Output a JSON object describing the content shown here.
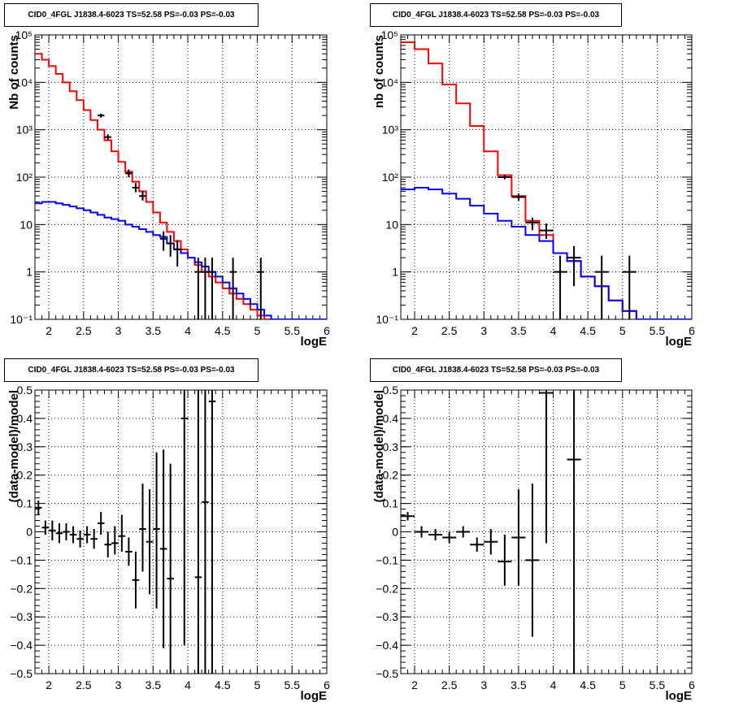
{
  "panels": [
    {
      "id": "p1",
      "title": "CID0_4FGL J1838.4-6023 TS=52.58 PS=-0.03 PS=-0.03",
      "ylabel": "Nb of counts",
      "xlabel": "logE"
    },
    {
      "id": "p2",
      "title": "CID0_4FGL J1838.4-6023 TS=52.58 PS=-0.03 PS=-0.03",
      "ylabel": "nb of counts",
      "xlabel": "logE"
    },
    {
      "id": "p3",
      "title": "CID0_4FGL J1838.4-6023 TS=52.58 PS=-0.03 PS=-0.03",
      "ylabel": "(data-model)/model",
      "xlabel": "logE"
    },
    {
      "id": "p4",
      "title": "CID0_4FGL J1838.4-6023 TS=52.58 PS=-0.03 PS=-0.03",
      "ylabel": "(data-model)/model",
      "xlabel": "logE"
    }
  ],
  "x_tick_labels": [
    "2",
    "2.5",
    "3",
    "3.5",
    "4",
    "4.5",
    "5",
    "5.5",
    "6"
  ],
  "y_tick_labels_log": [
    "10⁻¹",
    "1",
    "10",
    "10²",
    "10³",
    "10⁴",
    "10⁵"
  ],
  "y_tick_labels_resid": [
    "−0.5",
    "−0.4",
    "−0.3",
    "−0.2",
    "−0.1",
    "0",
    "0.1",
    "0.2",
    "0.3",
    "0.4",
    "0.5"
  ],
  "colors": {
    "total_model": "#ff0000",
    "source_model": "#0000ff",
    "data": "#000000",
    "grid": "#000000"
  },
  "chart_data": [
    {
      "type": "line",
      "title": "CID0_4FGL J1838.4-6023 TS=52.58 PS=-0.03 PS=-0.03",
      "xlabel": "logE",
      "ylabel": "Nb of counts",
      "xlim": [
        1.8,
        6.0
      ],
      "ylim": [
        0.1,
        100000
      ],
      "log_y": true,
      "grid": true,
      "bin_edges": [
        1.8,
        1.9,
        2.0,
        2.1,
        2.2,
        2.3,
        2.4,
        2.5,
        2.6,
        2.7,
        2.8,
        2.9,
        3.0,
        3.1,
        3.2,
        3.3,
        3.4,
        3.5,
        3.6,
        3.7,
        3.8,
        3.9,
        4.0,
        4.1,
        4.2,
        4.3,
        4.4,
        4.5,
        4.6,
        4.7,
        4.8,
        4.9,
        5.0,
        5.1,
        5.2,
        5.3,
        5.4,
        5.5,
        5.6,
        5.7,
        5.8,
        5.9,
        6.0
      ],
      "series": [
        {
          "values": [
            40000,
            30000,
            22000,
            15000,
            10000,
            6500,
            4200,
            2600,
            1600,
            1000,
            600,
            350,
            210,
            130,
            80,
            50,
            30,
            18,
            11,
            7,
            4.5,
            3,
            2,
            1.4,
            1,
            0.8,
            0.6,
            0.45,
            0.35,
            0.27,
            0.21,
            0.16,
            0.12,
            0.1,
            0.1,
            0.1,
            0.1,
            0.1,
            0.1,
            0.1,
            0.1,
            0.1
          ]
        },
        {
          "values": [
            28,
            30,
            30,
            28,
            26,
            24,
            22,
            20,
            18,
            16,
            14,
            13,
            12,
            10,
            9,
            8,
            7,
            6,
            5.5,
            4,
            3,
            2.5,
            2,
            1.6,
            1.3,
            1,
            0.8,
            0.6,
            0.45,
            0.35,
            0.27,
            0.21,
            0.16,
            0.12,
            0.1,
            0.1,
            0.1,
            0.1,
            0.1,
            0.1,
            0.1,
            0.1
          ]
        }
      ],
      "points": [
        {
          "x": 2.75,
          "y": 2000,
          "ylo": 1800,
          "yhi": 2200,
          "xw": 0.05
        },
        {
          "x": 2.85,
          "y": 700,
          "ylo": 600,
          "yhi": 800,
          "xw": 0.05
        },
        {
          "x": 3.15,
          "y": 120,
          "ylo": 100,
          "yhi": 145,
          "xw": 0.05
        },
        {
          "x": 3.25,
          "y": 60,
          "ylo": 48,
          "yhi": 75,
          "xw": 0.05
        },
        {
          "x": 3.35,
          "y": 40,
          "ylo": 32,
          "yhi": 50,
          "xw": 0.05
        },
        {
          "x": 3.65,
          "y": 5,
          "ylo": 2.8,
          "yhi": 7.2,
          "xw": 0.05
        },
        {
          "x": 3.75,
          "y": 4,
          "ylo": 2.1,
          "yhi": 6,
          "xw": 0.05
        },
        {
          "x": 3.85,
          "y": 3,
          "ylo": 1.3,
          "yhi": 4.7,
          "xw": 0.05
        },
        {
          "x": 4.15,
          "y": 1,
          "ylo": 0.1,
          "yhi": 2,
          "xw": 0.05
        },
        {
          "x": 4.25,
          "y": 1,
          "ylo": 0.1,
          "yhi": 2,
          "xw": 0.05
        },
        {
          "x": 4.35,
          "y": 1,
          "ylo": 0.1,
          "yhi": 2,
          "xw": 0.05
        },
        {
          "x": 4.65,
          "y": 1,
          "ylo": 0.1,
          "yhi": 2,
          "xw": 0.05
        },
        {
          "x": 5.05,
          "y": 1,
          "ylo": 0.1,
          "yhi": 2,
          "xw": 0.05
        }
      ]
    },
    {
      "type": "line",
      "title": "CID0_4FGL J1838.4-6023 TS=52.58 PS=-0.03 PS=-0.03",
      "xlabel": "logE",
      "ylabel": "nb of counts",
      "xlim": [
        1.8,
        6.0
      ],
      "ylim": [
        0.1,
        100000
      ],
      "log_y": true,
      "grid": true,
      "bin_edges": [
        1.8,
        2.0,
        2.2,
        2.4,
        2.6,
        2.8,
        3.0,
        3.2,
        3.4,
        3.6,
        3.8,
        4.0,
        4.2,
        4.4,
        4.6,
        4.8,
        5.0,
        5.2,
        5.4,
        5.6,
        5.8,
        6.0
      ],
      "series": [
        {
          "values": [
            70000,
            50000,
            25000,
            9000,
            3600,
            1200,
            350,
            110,
            40,
            12,
            6,
            2.5,
            1.7,
            0.8,
            0.5,
            0.25,
            0.15,
            0.1,
            0.1,
            0.1,
            0.1
          ]
        },
        {
          "values": [
            55,
            60,
            55,
            45,
            35,
            25,
            17,
            12,
            9,
            6,
            4.5,
            2.5,
            1.7,
            0.8,
            0.5,
            0.25,
            0.15,
            0.1,
            0.1,
            0.1,
            0.1
          ]
        }
      ],
      "points": [
        {
          "x": 3.3,
          "y": 100,
          "ylo": 90,
          "yhi": 112,
          "xw": 0.1
        },
        {
          "x": 3.5,
          "y": 38,
          "ylo": 32,
          "yhi": 45,
          "xw": 0.1
        },
        {
          "x": 3.7,
          "y": 11,
          "ylo": 7.6,
          "yhi": 14,
          "xw": 0.1
        },
        {
          "x": 3.9,
          "y": 7.5,
          "ylo": 5,
          "yhi": 10.5,
          "xw": 0.1
        },
        {
          "x": 4.1,
          "y": 1,
          "ylo": 0.1,
          "yhi": 2.2,
          "xw": 0.1
        },
        {
          "x": 4.3,
          "y": 2,
          "ylo": 0.5,
          "yhi": 3.5,
          "xw": 0.1
        },
        {
          "x": 4.7,
          "y": 1,
          "ylo": 0.1,
          "yhi": 2.2,
          "xw": 0.1
        },
        {
          "x": 5.1,
          "y": 1,
          "ylo": 0.1,
          "yhi": 2.2,
          "xw": 0.1
        }
      ]
    },
    {
      "type": "scatter",
      "title": "CID0_4FGL J1838.4-6023 TS=52.58 PS=-0.03 PS=-0.03",
      "xlabel": "logE",
      "ylabel": "(data-model)/model",
      "xlim": [
        1.8,
        6.0
      ],
      "ylim": [
        -0.5,
        0.5
      ],
      "log_y": false,
      "grid": true,
      "points": [
        {
          "x": 1.85,
          "y": 0.085,
          "ylo": 0.06,
          "yhi": 0.11,
          "xw": 0.05
        },
        {
          "x": 1.95,
          "y": 0.015,
          "ylo": -0.01,
          "yhi": 0.04,
          "xw": 0.05
        },
        {
          "x": 2.05,
          "y": 0.005,
          "ylo": -0.03,
          "yhi": 0.04,
          "xw": 0.05
        },
        {
          "x": 2.15,
          "y": -0.005,
          "ylo": -0.04,
          "yhi": 0.03,
          "xw": 0.05
        },
        {
          "x": 2.25,
          "y": 0.0,
          "ylo": -0.03,
          "yhi": 0.03,
          "xw": 0.05
        },
        {
          "x": 2.35,
          "y": -0.01,
          "ylo": -0.04,
          "yhi": 0.02,
          "xw": 0.05
        },
        {
          "x": 2.45,
          "y": -0.025,
          "ylo": -0.055,
          "yhi": 0.005,
          "xw": 0.05
        },
        {
          "x": 2.55,
          "y": -0.01,
          "ylo": -0.04,
          "yhi": 0.02,
          "xw": 0.05
        },
        {
          "x": 2.65,
          "y": -0.025,
          "ylo": -0.06,
          "yhi": 0.01,
          "xw": 0.05
        },
        {
          "x": 2.75,
          "y": 0.03,
          "ylo": -0.01,
          "yhi": 0.07,
          "xw": 0.05
        },
        {
          "x": 2.85,
          "y": -0.045,
          "ylo": -0.09,
          "yhi": 0.0,
          "xw": 0.05
        },
        {
          "x": 2.95,
          "y": -0.04,
          "ylo": -0.08,
          "yhi": 0.02,
          "xw": 0.05
        },
        {
          "x": 3.05,
          "y": -0.015,
          "ylo": -0.07,
          "yhi": 0.06,
          "xw": 0.05
        },
        {
          "x": 3.15,
          "y": -0.07,
          "ylo": -0.12,
          "yhi": -0.02,
          "xw": 0.05
        },
        {
          "x": 3.25,
          "y": -0.17,
          "ylo": -0.27,
          "yhi": -0.07,
          "xw": 0.05
        },
        {
          "x": 3.35,
          "y": 0.01,
          "ylo": -0.14,
          "yhi": 0.17,
          "xw": 0.05
        },
        {
          "x": 3.45,
          "y": -0.035,
          "ylo": -0.22,
          "yhi": 0.15,
          "xw": 0.05
        },
        {
          "x": 3.55,
          "y": 0.01,
          "ylo": -0.27,
          "yhi": 0.28,
          "xw": 0.05
        },
        {
          "x": 3.65,
          "y": -0.06,
          "ylo": -0.41,
          "yhi": 0.29,
          "xw": 0.05
        },
        {
          "x": 3.75,
          "y": -0.165,
          "ylo": -0.5,
          "yhi": 0.24,
          "xw": 0.05
        },
        {
          "x": 3.95,
          "y": 0.4,
          "ylo": -0.4,
          "yhi": 0.5,
          "xw": 0.05
        },
        {
          "x": 4.15,
          "y": -0.16,
          "ylo": -0.5,
          "yhi": 0.5,
          "xw": 0.05
        },
        {
          "x": 4.25,
          "y": 0.105,
          "ylo": -0.5,
          "yhi": 0.5,
          "xw": 0.05
        },
        {
          "x": 4.35,
          "y": 0.46,
          "ylo": -0.5,
          "yhi": 0.5,
          "xw": 0.05
        }
      ]
    },
    {
      "type": "scatter",
      "title": "CID0_4FGL J1838.4-6023 TS=52.58 PS=-0.03 PS=-0.03",
      "xlabel": "logE",
      "ylabel": "(data-model)/model",
      "xlim": [
        1.8,
        6.0
      ],
      "ylim": [
        -0.5,
        0.5
      ],
      "log_y": false,
      "grid": true,
      "points": [
        {
          "x": 1.9,
          "y": 0.055,
          "ylo": 0.04,
          "yhi": 0.07,
          "xw": 0.1
        },
        {
          "x": 2.1,
          "y": 0.0,
          "ylo": -0.02,
          "yhi": 0.02,
          "xw": 0.1
        },
        {
          "x": 2.3,
          "y": -0.01,
          "ylo": -0.03,
          "yhi": 0.01,
          "xw": 0.1
        },
        {
          "x": 2.5,
          "y": -0.02,
          "ylo": -0.04,
          "yhi": 0.0,
          "xw": 0.1
        },
        {
          "x": 2.7,
          "y": 0.0,
          "ylo": -0.02,
          "yhi": 0.02,
          "xw": 0.1
        },
        {
          "x": 2.9,
          "y": -0.045,
          "ylo": -0.07,
          "yhi": -0.02,
          "xw": 0.1
        },
        {
          "x": 3.1,
          "y": -0.035,
          "ylo": -0.08,
          "yhi": 0.01,
          "xw": 0.1
        },
        {
          "x": 3.3,
          "y": -0.105,
          "ylo": -0.19,
          "yhi": -0.01,
          "xw": 0.1
        },
        {
          "x": 3.5,
          "y": -0.02,
          "ylo": -0.19,
          "yhi": 0.15,
          "xw": 0.1
        },
        {
          "x": 3.7,
          "y": -0.1,
          "ylo": -0.37,
          "yhi": 0.17,
          "xw": 0.1
        },
        {
          "x": 3.9,
          "y": 0.49,
          "ylo": -0.04,
          "yhi": 0.5,
          "xw": 0.1
        },
        {
          "x": 4.3,
          "y": 0.255,
          "ylo": -0.5,
          "yhi": 0.5,
          "xw": 0.1
        }
      ]
    }
  ]
}
